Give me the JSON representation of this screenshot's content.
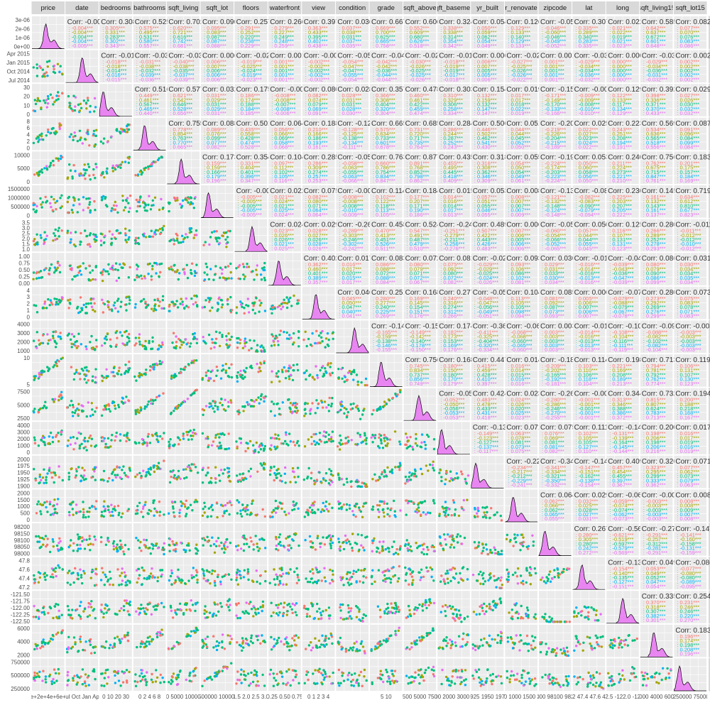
{
  "chart_data": {
    "type": "scatter",
    "title": "",
    "variables": [
      "price",
      "date",
      "bedrooms",
      "bathrooms",
      "sqft_living",
      "sqft_lot",
      "floors",
      "waterfront",
      "view",
      "condition",
      "grade",
      "sqft_above",
      "sqft_basement",
      "yr_built",
      "yr_renovated",
      "zipcode",
      "lat",
      "long",
      "sqft_living15",
      "sqft_lot15"
    ],
    "strip_labels": [
      "price",
      "date",
      "bedrooms",
      "bathrooms",
      "sqft_living",
      "sqft_lot",
      "floors",
      "waterfront",
      "view",
      "condition",
      "grade",
      "sqft_above",
      "sqft_basement",
      "yr_built",
      "yr_renovated",
      "zipcode",
      "lat",
      "long",
      "sqft_living15",
      "sqft_lot15"
    ],
    "group_variable": "condition",
    "group_colors": [
      "#F8766D",
      "#A3A500",
      "#00BF7D",
      "#00B0F6",
      "#E76BF3"
    ],
    "panel_background": "#EBEBEB",
    "grid": true,
    "upper_panels": "correlation",
    "diagonal_panels": "density",
    "lower_panels": "points",
    "correlations": [
      [
        null,
        -0.004,
        0.308,
        0.525,
        0.702,
        0.09,
        0.257,
        0.266,
        0.397,
        0.036,
        0.667,
        0.606,
        0.324,
        0.054,
        0.126,
        -0.053,
        0.307,
        0.022,
        0.585,
        0.082
      ],
      [
        null,
        null,
        -0.016,
        -0.034,
        -0.035,
        0.006,
        -0.022,
        0.001,
        -0.002,
        -0.05,
        -0.04,
        -0.028,
        -0.019,
        0.006,
        -0.025,
        0.001,
        -0.033,
        0.0,
        -0.032,
        0.002
      ],
      [
        null,
        null,
        null,
        0.516,
        0.577,
        0.032,
        0.175,
        -0.007,
        0.08,
        0.028,
        0.357,
        0.478,
        0.303,
        0.154,
        0.019,
        -0.153,
        -0.009,
        0.129,
        0.392,
        0.029
      ],
      [
        null,
        null,
        null,
        null,
        0.755,
        0.088,
        0.501,
        0.064,
        0.188,
        -0.125,
        0.665,
        0.685,
        0.284,
        0.506,
        0.051,
        -0.204,
        0.025,
        0.223,
        0.569,
        0.087
      ],
      [
        null,
        null,
        null,
        null,
        null,
        0.173,
        0.354,
        0.104,
        0.285,
        -0.059,
        0.763,
        0.877,
        0.435,
        0.318,
        0.055,
        -0.199,
        0.053,
        0.24,
        0.756,
        0.183
      ],
      [
        null,
        null,
        null,
        null,
        null,
        null,
        -0.005,
        0.022,
        0.075,
        -0.009,
        0.114,
        0.184,
        0.015,
        0.053,
        0.008,
        -0.13,
        -0.086,
        0.23,
        0.145,
        0.719
      ],
      [
        null,
        null,
        null,
        null,
        null,
        null,
        null,
        0.024,
        0.029,
        -0.264,
        0.458,
        0.524,
        -0.246,
        0.489,
        0.006,
        -0.059,
        0.05,
        0.125,
        0.28,
        -0.011
      ],
      [
        null,
        null,
        null,
        null,
        null,
        null,
        null,
        null,
        0.402,
        0.017,
        0.083,
        0.072,
        0.081,
        -0.026,
        0.093,
        0.03,
        -0.014,
        -0.042,
        0.086,
        0.031
      ],
      [
        null,
        null,
        null,
        null,
        null,
        null,
        null,
        null,
        null,
        0.046,
        0.251,
        0.168,
        0.277,
        -0.053,
        0.104,
        0.085,
        0.006,
        -0.078,
        0.28,
        0.073
      ],
      [
        null,
        null,
        null,
        null,
        null,
        null,
        null,
        null,
        null,
        null,
        -0.145,
        -0.158,
        0.174,
        -0.361,
        -0.061,
        0.003,
        -0.015,
        -0.107,
        -0.093,
        -0.003
      ],
      [
        null,
        null,
        null,
        null,
        null,
        null,
        null,
        null,
        null,
        null,
        null,
        0.756,
        0.168,
        0.447,
        0.014,
        -0.185,
        0.114,
        0.198,
        0.713,
        0.119
      ],
      [
        null,
        null,
        null,
        null,
        null,
        null,
        null,
        null,
        null,
        null,
        null,
        null,
        -0.052,
        0.424,
        0.023,
        -0.261,
        -0.001,
        0.344,
        0.732,
        0.194
      ],
      [
        null,
        null,
        null,
        null,
        null,
        null,
        null,
        null,
        null,
        null,
        null,
        null,
        null,
        -0.133,
        0.071,
        0.075,
        0.111,
        -0.145,
        0.2,
        0.017
      ],
      [
        null,
        null,
        null,
        null,
        null,
        null,
        null,
        null,
        null,
        null,
        null,
        null,
        null,
        null,
        -0.225,
        -0.347,
        -0.148,
        0.409,
        0.326,
        0.071
      ],
      [
        null,
        null,
        null,
        null,
        null,
        null,
        null,
        null,
        null,
        null,
        null,
        null,
        null,
        null,
        null,
        0.064,
        0.029,
        -0.068,
        -0.003,
        0.008
      ],
      [
        null,
        null,
        null,
        null,
        null,
        null,
        null,
        null,
        null,
        null,
        null,
        null,
        null,
        null,
        null,
        null,
        0.267,
        -0.564,
        -0.279,
        -0.147
      ],
      [
        null,
        null,
        null,
        null,
        null,
        null,
        null,
        null,
        null,
        null,
        null,
        null,
        null,
        null,
        null,
        null,
        null,
        -0.136,
        0.049,
        -0.086
      ],
      [
        null,
        null,
        null,
        null,
        null,
        null,
        null,
        null,
        null,
        null,
        null,
        null,
        null,
        null,
        null,
        null,
        null,
        null,
        0.335,
        0.254
      ],
      [
        null,
        null,
        null,
        null,
        null,
        null,
        null,
        null,
        null,
        null,
        null,
        null,
        null,
        null,
        null,
        null,
        null,
        null,
        null,
        0.183
      ],
      [
        null,
        null,
        null,
        null,
        null,
        null,
        null,
        null,
        null,
        null,
        null,
        null,
        null,
        null,
        null,
        null,
        null,
        null,
        null,
        null
      ]
    ],
    "corr_prefix": "Corr: ",
    "group_corr_prefix": ": ",
    "y_tick_labels": [
      [
        "0e+00",
        "1e-06",
        "2e-06",
        "3e-06"
      ],
      [
        "Jul 2014",
        "Oct 2014",
        "Jan 2015",
        "Apr 2015"
      ],
      [
        "0",
        "10",
        "20",
        "30"
      ],
      [
        "0",
        "2",
        "4",
        "6",
        "8"
      ],
      [
        "0",
        "5000",
        "10000"
      ],
      [
        "0",
        "500000",
        "1000000",
        "1500000"
      ],
      [
        "1.0",
        "1.5",
        "2.0",
        "2.5",
        "3.0",
        "3.5"
      ],
      [
        "0.00",
        "0.25",
        "0.50",
        "0.75",
        "1.00"
      ],
      [
        "0",
        "1",
        "2",
        "3",
        "4"
      ],
      [
        "1000",
        "2000",
        "3000",
        "4000"
      ],
      [
        "5",
        "10"
      ],
      [
        "2500",
        "5000",
        "7500"
      ],
      [
        "0",
        "1000",
        "2000",
        "3000",
        "4000"
      ],
      [
        "1900",
        "1925",
        "1950",
        "1975",
        "2000"
      ],
      [
        "0",
        "500",
        "1000",
        "1500",
        "2000"
      ],
      [
        "98000",
        "98050",
        "98100",
        "98150",
        "98200"
      ],
      [
        "47.2",
        "47.4",
        "47.6",
        "47.8"
      ],
      [
        "-122.50",
        "-122.25",
        "-122.00",
        "-121.75",
        "-121.50"
      ],
      [
        "2000",
        "4000",
        "6000"
      ],
      [
        "250000",
        "500000",
        "750000"
      ]
    ],
    "x_tick_labels": [
      "0e+2e+4e+6e+6",
      "Jul Oct Jan Apr",
      "0 10 20 30",
      "0 2 4 6 8",
      "0 5000 10000",
      "0 500000 1000000",
      "1.0 1.5 2.0 2.5 3.0 3.5",
      "0.00 0.25 0.50 0.75 1.00",
      "0 1 2 3 4",
      "",
      "5 10",
      "2500 5000 7500",
      "0 1000 2000 3000 4000",
      "1900 1925 1950 1975 2000",
      "0 500 1000 1500 2000",
      "98000 98100 98200",
      "47.2 47.4 47.6 47.8",
      "-122.5 -122.0 -121.5",
      "2000 4000 6000",
      "0 250000 750000"
    ]
  }
}
